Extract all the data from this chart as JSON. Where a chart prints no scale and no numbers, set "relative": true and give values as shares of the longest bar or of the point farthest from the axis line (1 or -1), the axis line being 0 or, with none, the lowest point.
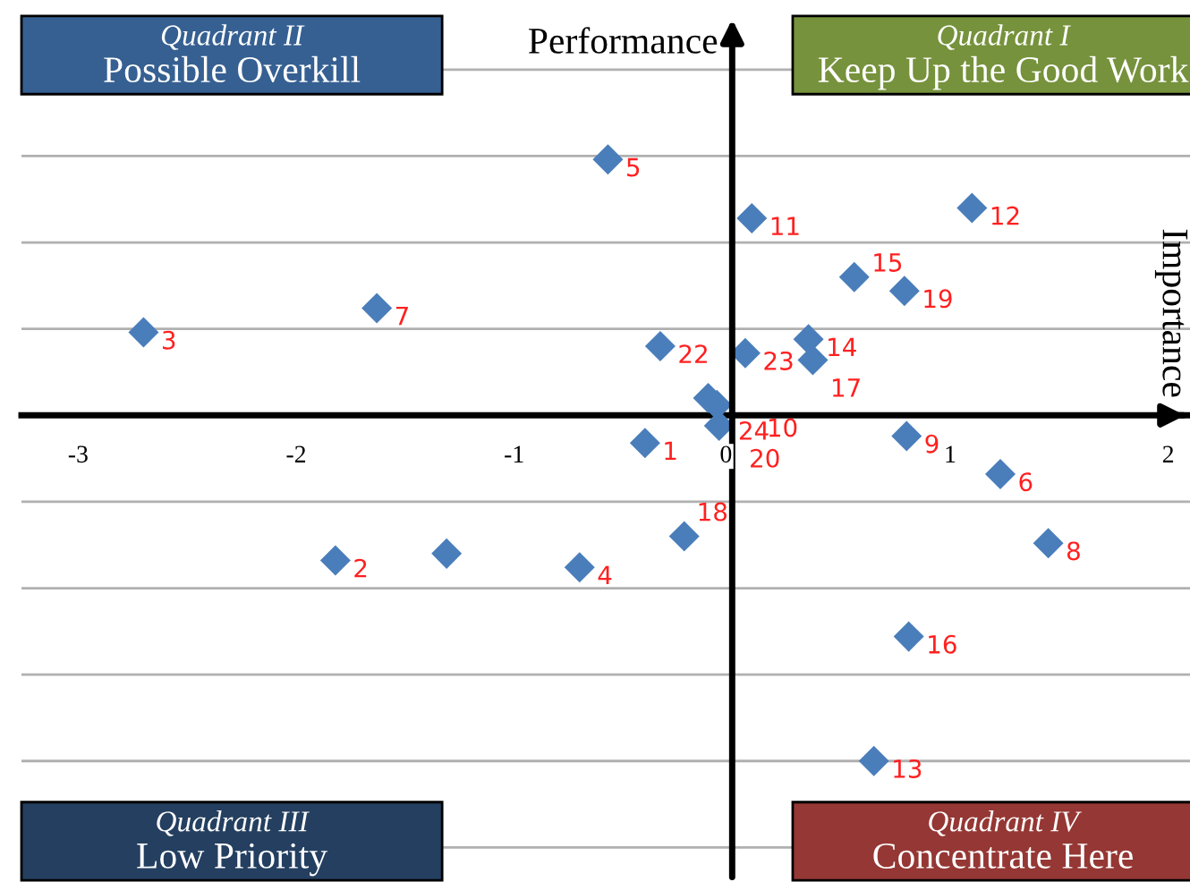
{
  "chart_data": {
    "type": "scatter",
    "relative": true,
    "ylabel": "Performance",
    "x": [
      -0.57,
      0.09,
      1.1,
      0.56,
      0.79,
      -2.7,
      -1.63,
      -0.33,
      0.35,
      0.37,
      0.06,
      -0.11,
      -0.07,
      -0.06,
      -0.4,
      0.8,
      1.23,
      -0.22,
      1.45,
      -1.82,
      -1.31,
      -0.7,
      0.81,
      0.65
    ],
    "series": [
      {
        "color": "#4a7ebb",
        "values": [
          0.74,
          0.57,
          0.6,
          0.4,
          0.36,
          0.24,
          0.31,
          0.2,
          0.22,
          0.16,
          0.18,
          0.05,
          0.03,
          -0.03,
          -0.08,
          -0.06,
          -0.17,
          -0.35,
          -0.37,
          -0.42,
          -0.4,
          -0.44,
          -0.64,
          -1
        ]
      }
    ],
    "marker": "diamond",
    "grid": "y",
    "xlim": [
      -3.26,
      2.1
    ],
    "xticks": [
      -3,
      -2,
      -1,
      0,
      1,
      2
    ],
    "annotations": [
      {
        "text": "5",
        "x": -0.57,
        "y": 0.74
      },
      {
        "text": "11",
        "x": 0.09,
        "y": 0.57
      },
      {
        "text": "12",
        "x": 1.1,
        "y": 0.6
      },
      {
        "text": "15",
        "x": 0.56,
        "y": 0.4
      },
      {
        "text": "19",
        "x": 0.79,
        "y": 0.36
      },
      {
        "text": "3",
        "x": -2.7,
        "y": 0.24
      },
      {
        "text": "7",
        "x": -1.63,
        "y": 0.31
      },
      {
        "text": "22",
        "x": -0.33,
        "y": 0.2
      },
      {
        "text": "14",
        "x": 0.35,
        "y": 0.22
      },
      {
        "text": "17",
        "x": 0.37,
        "y": 0.16
      },
      {
        "text": "23",
        "x": 0.06,
        "y": 0.18
      },
      {
        "text": "24",
        "x": -0.11,
        "y": 0.05
      },
      {
        "text": "10",
        "x": -0.07,
        "y": 0.03
      },
      {
        "text": "20",
        "x": -0.06,
        "y": -0.03
      },
      {
        "text": "1",
        "x": -0.4,
        "y": -0.08
      },
      {
        "text": "9",
        "x": 0.8,
        "y": -0.06
      },
      {
        "text": "6",
        "x": 1.23,
        "y": -0.17
      },
      {
        "text": "18",
        "x": -0.22,
        "y": -0.35
      },
      {
        "text": "8",
        "x": 1.45,
        "y": -0.37
      },
      {
        "text": "2",
        "x": -1.82,
        "y": -0.42
      },
      {
        "text": "4",
        "x": -0.7,
        "y": -0.44
      },
      {
        "text": "16",
        "x": 0.81,
        "y": -0.64
      },
      {
        "text": "13",
        "x": 0.65,
        "y": -1
      },
      "Quadrant II",
      "Possible Overkill",
      "Quadrant I",
      "Keep Up the Good Work",
      "Quadrant III",
      "Low Priority",
      "Quadrant IV",
      "Concentrate Here",
      "Importance"
    ]
  }
}
